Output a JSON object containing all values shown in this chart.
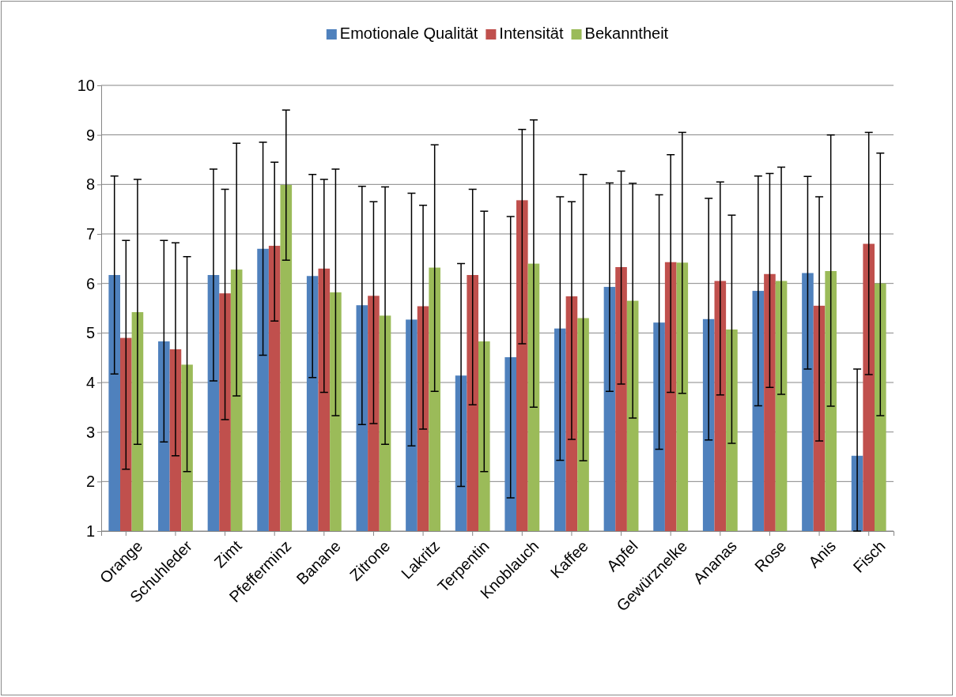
{
  "chart_data": {
    "type": "bar",
    "categories": [
      "Orange",
      "Schuhleder",
      "Zimt",
      "Pfefferminz",
      "Banane",
      "Zitrone",
      "Lakritz",
      "Terpentin",
      "Knoblauch",
      "Kaffee",
      "Apfel",
      "Gewürznelke",
      "Ananas",
      "Rose",
      "Anis",
      "Fisch"
    ],
    "series": [
      {
        "name": "Emotionale Qualität",
        "color": "#4f81bd",
        "values": [
          6.17,
          4.83,
          6.17,
          6.7,
          6.15,
          5.56,
          5.27,
          4.14,
          4.51,
          5.09,
          5.93,
          5.21,
          5.28,
          5.85,
          6.21,
          2.52
        ],
        "errors": [
          [
            4.17,
            8.17
          ],
          [
            2.8,
            6.87
          ],
          [
            4.03,
            8.31
          ],
          [
            4.55,
            8.85
          ],
          [
            4.1,
            8.2
          ],
          [
            3.15,
            7.96
          ],
          [
            2.72,
            7.82
          ],
          [
            1.9,
            6.4
          ],
          [
            1.67,
            7.35
          ],
          [
            2.43,
            7.75
          ],
          [
            3.82,
            8.03
          ],
          [
            2.65,
            7.79
          ],
          [
            2.84,
            7.72
          ],
          [
            3.53,
            8.17
          ],
          [
            4.27,
            8.16
          ],
          [
            1,
            4.27
          ]
        ]
      },
      {
        "name": "Intensität",
        "color": "#c0504d",
        "values": [
          4.9,
          4.67,
          5.8,
          6.76,
          6.3,
          5.75,
          5.54,
          6.17,
          7.68,
          5.74,
          6.33,
          6.43,
          6.05,
          6.19,
          5.55,
          6.8
        ],
        "errors": [
          [
            2.25,
            6.87
          ],
          [
            2.52,
            6.82
          ],
          [
            3.25,
            7.9
          ],
          [
            5.24,
            8.45
          ],
          [
            3.8,
            8.1
          ],
          [
            3.17,
            7.65
          ],
          [
            3.06,
            7.58
          ],
          [
            3.55,
            7.9
          ],
          [
            4.78,
            9.11
          ],
          [
            2.85,
            7.65
          ],
          [
            3.97,
            8.27
          ],
          [
            3.8,
            8.6
          ],
          [
            3.75,
            8.05
          ],
          [
            3.9,
            8.22
          ],
          [
            2.82,
            7.75
          ],
          [
            4.16,
            9.05
          ]
        ]
      },
      {
        "name": "Bekanntheit",
        "color": "#9bbb59",
        "values": [
          5.42,
          4.36,
          6.28,
          7.99,
          5.82,
          5.35,
          6.32,
          4.83,
          6.4,
          5.3,
          5.65,
          6.42,
          5.07,
          6.05,
          6.25,
          6.0
        ],
        "errors": [
          [
            2.75,
            8.1
          ],
          [
            2.2,
            6.54
          ],
          [
            3.73,
            8.83
          ],
          [
            6.47,
            9.5
          ],
          [
            3.33,
            8.31
          ],
          [
            2.75,
            7.95
          ],
          [
            3.82,
            8.8
          ],
          [
            2.2,
            7.46
          ],
          [
            3.5,
            9.3
          ],
          [
            2.42,
            8.2
          ],
          [
            3.28,
            8.02
          ],
          [
            3.78,
            9.05
          ],
          [
            2.77,
            7.38
          ],
          [
            3.76,
            8.35
          ],
          [
            3.52,
            9.0
          ],
          [
            3.33,
            8.63
          ]
        ]
      }
    ],
    "ylim": [
      1,
      10
    ],
    "yticks": [
      1,
      2,
      3,
      4,
      5,
      6,
      7,
      8,
      9,
      10
    ],
    "grid": "y",
    "legend": "top"
  }
}
